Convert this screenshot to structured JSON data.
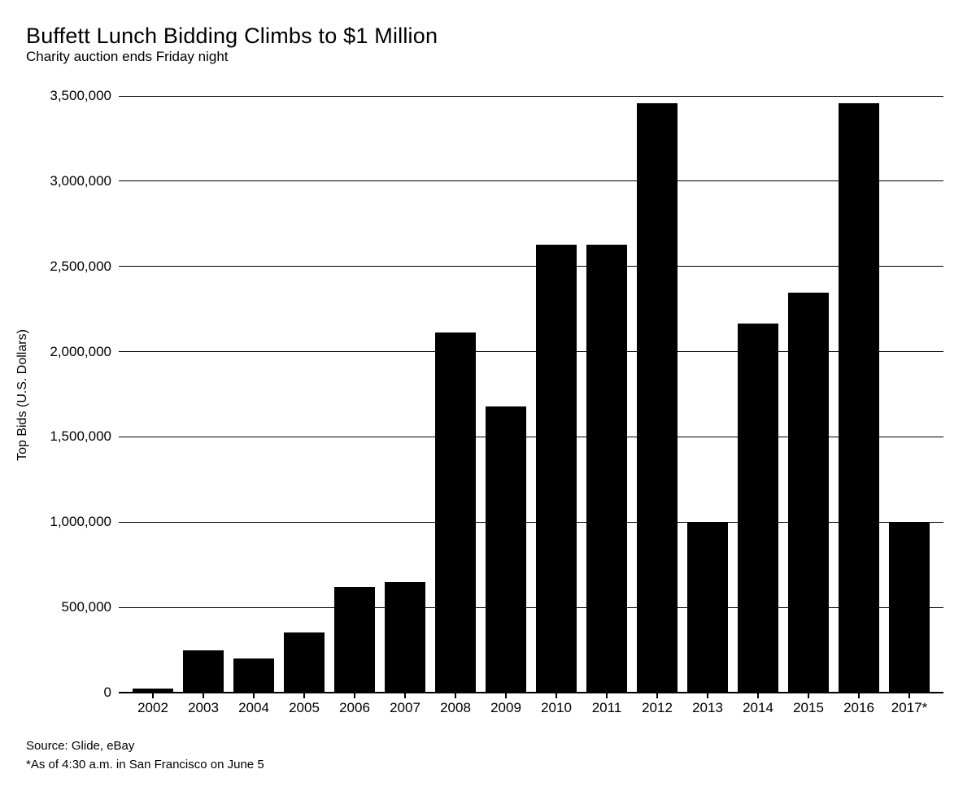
{
  "header": {
    "title": "Buffett Lunch Bidding Climbs to $1 Million",
    "subtitle": "Charity auction ends Friday night"
  },
  "footer": {
    "source": "Source: Glide, eBay",
    "footnote": "*As of 4:30 a.m. in San Francisco on June 5"
  },
  "chart_data": {
    "type": "bar",
    "title": "Buffett Lunch Bidding Climbs to $1 Million",
    "subtitle": "Charity auction ends Friday night",
    "categories": [
      "2002",
      "2003",
      "2004",
      "2005",
      "2006",
      "2007",
      "2008",
      "2009",
      "2010",
      "2011",
      "2012",
      "2013",
      "2014",
      "2015",
      "2016",
      "2017*"
    ],
    "values": [
      25000,
      250100,
      202100,
      351100,
      620100,
      650100,
      2110100,
      1680300,
      2626311,
      2626411,
      3456789,
      1000100,
      2166766,
      2345678,
      3456789,
      1000000
    ],
    "xlabel": "",
    "ylabel": "Top Bids (U.S. Dollars)",
    "ylim": [
      0,
      3500000
    ],
    "y_ticks": [
      0,
      500000,
      1000000,
      1500000,
      2000000,
      2500000,
      3000000,
      3500000
    ],
    "y_tick_labels": [
      "0",
      "500,000",
      "1,000,000",
      "1,500,000",
      "2,000,000",
      "2,500,000",
      "3,000,000",
      "3,500,000"
    ],
    "grid": "horizontal",
    "legend": "none",
    "bar_color": "#000000",
    "background_color": "#ffffff",
    "text_color": "#000000",
    "source": "Source: Glide, eBay",
    "footnote": "*As of 4:30 a.m. in San Francisco on June 5"
  }
}
